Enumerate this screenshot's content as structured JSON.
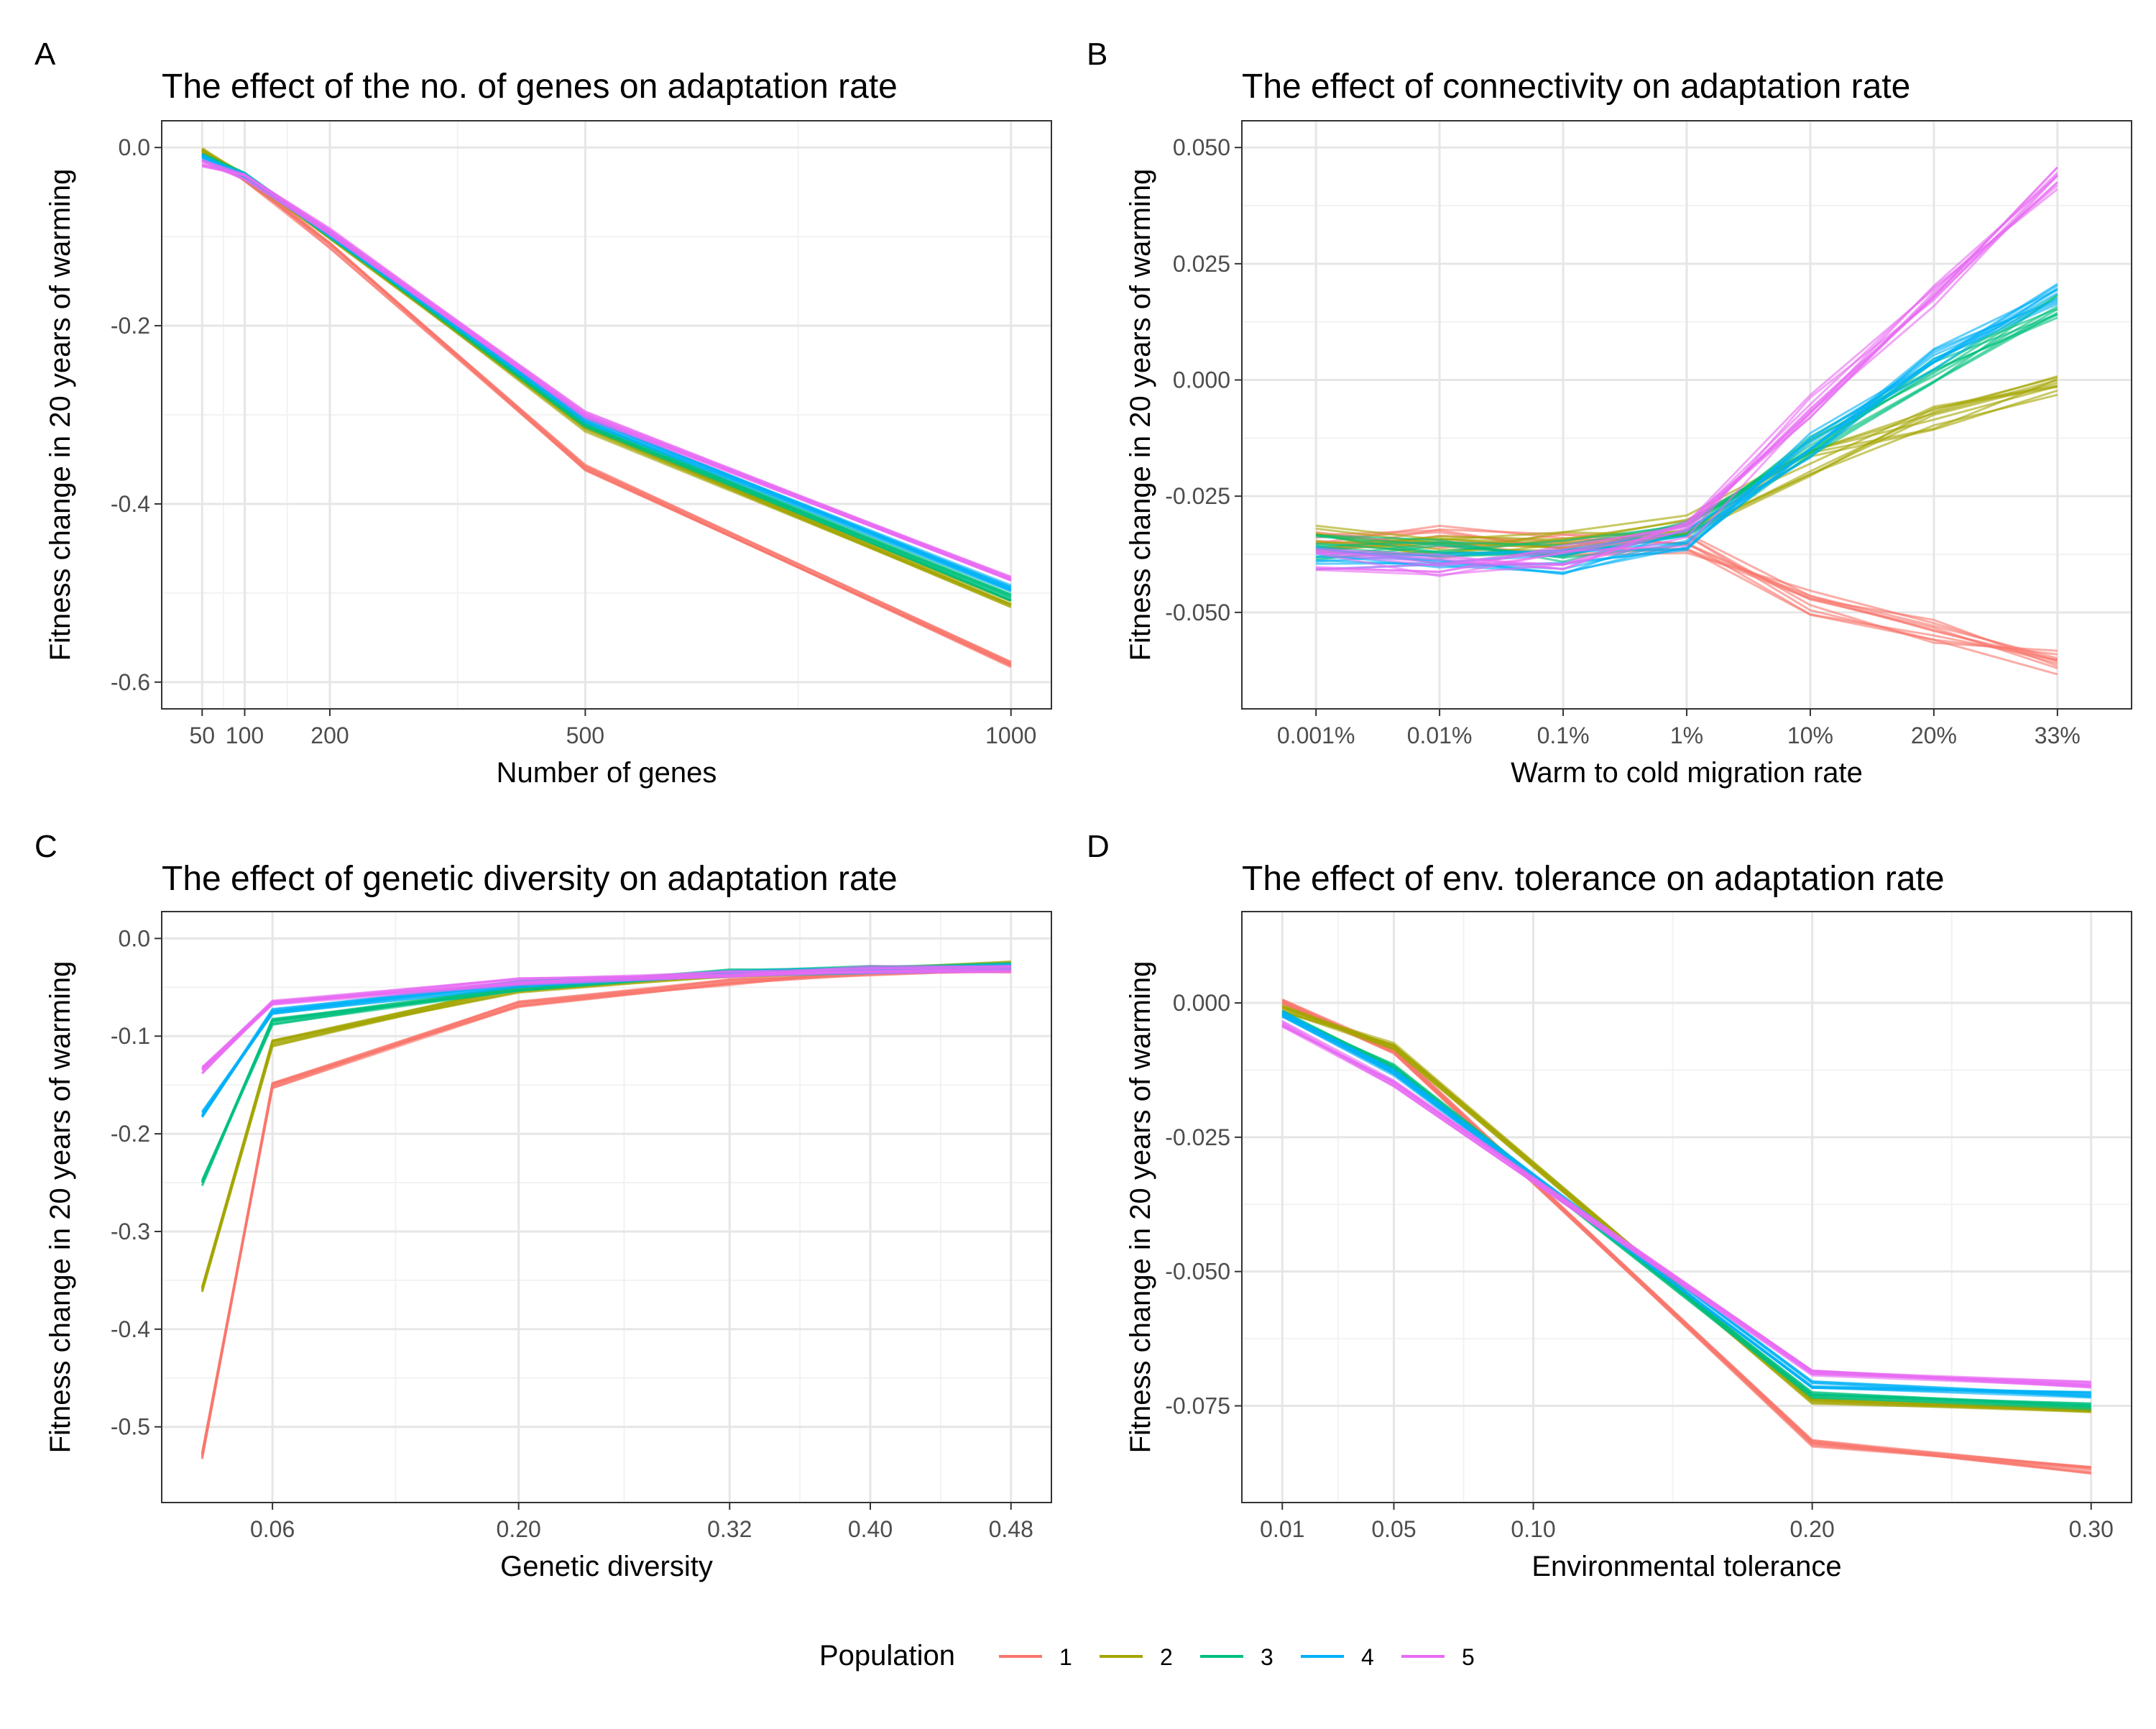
{
  "legend": {
    "title": "Population",
    "entries": [
      "1",
      "2",
      "3",
      "4",
      "5"
    ]
  },
  "colors": {
    "series": [
      "#F8766D",
      "#A3A500",
      "#00BF7D",
      "#00B0F6",
      "#E76BF3"
    ],
    "grid_major": "#E6E6E6",
    "grid_minor": "#F2F2F2",
    "panel_border": "#333333",
    "axis_text": "#4D4D4D"
  },
  "chart_data": [
    {
      "panel_label": "A",
      "type": "line",
      "title": "The effect of the no. of genes on adaptation rate",
      "xlabel": "Number of genes",
      "ylabel": "Fitness change in 20 years of warming",
      "xscale": "linear",
      "xlim": [
        50,
        1000
      ],
      "ylim": [
        -0.6,
        0.0
      ],
      "x": [
        50,
        100,
        200,
        500,
        1000
      ],
      "xticks": [
        50,
        100,
        200,
        500,
        1000
      ],
      "xtick_labels": [
        "50",
        "100",
        "200",
        "500",
        "1000"
      ],
      "yticks": [
        0.0,
        -0.2,
        -0.4,
        -0.6
      ],
      "ytick_labels": [
        "0.0",
        "-0.2",
        "-0.4",
        "-0.6"
      ],
      "replicates_per_population": 10,
      "series": [
        {
          "name": "1",
          "values": [
            -0.005,
            -0.035,
            -0.11,
            -0.36,
            -0.58
          ]
        },
        {
          "name": "2",
          "values": [
            -0.003,
            -0.033,
            -0.1,
            -0.315,
            -0.512
          ]
        },
        {
          "name": "3",
          "values": [
            -0.008,
            -0.032,
            -0.098,
            -0.31,
            -0.505
          ]
        },
        {
          "name": "4",
          "values": [
            -0.012,
            -0.031,
            -0.096,
            -0.305,
            -0.495
          ]
        },
        {
          "name": "5",
          "values": [
            -0.018,
            -0.034,
            -0.094,
            -0.3,
            -0.485
          ]
        }
      ]
    },
    {
      "panel_label": "B",
      "type": "line",
      "title": "The effect of connectivity on adaptation rate",
      "xlabel": "Warm to cold migration rate",
      "ylabel": "Fitness change in 20 years of warming",
      "xscale": "categorical",
      "categories": [
        "0.001%",
        "0.01%",
        "0.1%",
        "1%",
        "10%",
        "20%",
        "33%"
      ],
      "ylim": [
        -0.065,
        0.05
      ],
      "yticks": [
        0.05,
        0.025,
        0.0,
        -0.025,
        -0.05
      ],
      "ytick_labels": [
        "0.050",
        "0.025",
        "0.000",
        "-0.025",
        "-0.050"
      ],
      "replicates_per_population": 10,
      "series": [
        {
          "name": "1",
          "values": [
            -0.035,
            -0.034,
            -0.035,
            -0.035,
            -0.048,
            -0.054,
            -0.061
          ]
        },
        {
          "name": "2",
          "values": [
            -0.034,
            -0.036,
            -0.034,
            -0.031,
            -0.018,
            -0.008,
            -0.001
          ]
        },
        {
          "name": "3",
          "values": [
            -0.036,
            -0.037,
            -0.037,
            -0.033,
            -0.014,
            0.002,
            0.016
          ]
        },
        {
          "name": "4",
          "values": [
            -0.038,
            -0.039,
            -0.039,
            -0.034,
            -0.014,
            0.004,
            0.019
          ]
        },
        {
          "name": "5",
          "values": [
            -0.039,
            -0.04,
            -0.038,
            -0.033,
            -0.006,
            0.018,
            0.043
          ]
        }
      ]
    },
    {
      "panel_label": "C",
      "type": "line",
      "title": "The effect of genetic diversity on adaptation rate",
      "xlabel": "Genetic diversity",
      "ylabel": "Fitness change in 20 years of warming",
      "xscale": "linear",
      "xlim": [
        0.02,
        0.48
      ],
      "ylim": [
        -0.55,
        0.0
      ],
      "x": [
        0.02,
        0.06,
        0.2,
        0.32,
        0.4,
        0.48
      ],
      "xticks": [
        0.06,
        0.2,
        0.32,
        0.4,
        0.48
      ],
      "xtick_labels": [
        "0.06",
        "0.20",
        "0.32",
        "0.40",
        "0.48"
      ],
      "yticks": [
        0.0,
        -0.1,
        -0.2,
        -0.3,
        -0.4,
        -0.5
      ],
      "ytick_labels": [
        "0.0",
        "-0.1",
        "-0.2",
        "-0.3",
        "-0.4",
        "-0.5"
      ],
      "replicates_per_population": 10,
      "series": [
        {
          "name": "1",
          "values": [
            -0.53,
            -0.15,
            -0.068,
            -0.045,
            -0.035,
            -0.033
          ]
        },
        {
          "name": "2",
          "values": [
            -0.36,
            -0.107,
            -0.052,
            -0.036,
            -0.031,
            -0.027
          ]
        },
        {
          "name": "3",
          "values": [
            -0.25,
            -0.085,
            -0.05,
            -0.035,
            -0.031,
            -0.028
          ]
        },
        {
          "name": "4",
          "values": [
            -0.18,
            -0.075,
            -0.047,
            -0.035,
            -0.032,
            -0.029
          ]
        },
        {
          "name": "5",
          "values": [
            -0.135,
            -0.067,
            -0.044,
            -0.036,
            -0.032,
            -0.031
          ]
        }
      ]
    },
    {
      "panel_label": "D",
      "type": "line",
      "title": "The effect of env. tolerance on adaptation rate",
      "xlabel": "Environmental tolerance",
      "ylabel": "Fitness change in 20 years of warming",
      "xscale": "linear",
      "xlim": [
        0.01,
        0.3
      ],
      "ylim": [
        -0.088,
        0.012
      ],
      "x": [
        0.01,
        0.05,
        0.2,
        0.3
      ],
      "xticks": [
        0.01,
        0.05,
        0.1,
        0.2,
        0.3
      ],
      "xtick_labels": [
        "0.01",
        "0.05",
        "0.10",
        "0.20",
        "0.30"
      ],
      "yticks": [
        0.0,
        -0.025,
        -0.05,
        -0.075
      ],
      "ytick_labels": [
        "0.000",
        "-0.025",
        "-0.050",
        "-0.075"
      ],
      "replicates_per_population": 10,
      "series": [
        {
          "name": "1",
          "values": [
            0.0,
            -0.009,
            -0.082,
            -0.087
          ]
        },
        {
          "name": "2",
          "values": [
            -0.001,
            -0.008,
            -0.074,
            -0.076
          ]
        },
        {
          "name": "3",
          "values": [
            -0.002,
            -0.012,
            -0.073,
            -0.075
          ]
        },
        {
          "name": "4",
          "values": [
            -0.002,
            -0.013,
            -0.071,
            -0.073
          ]
        },
        {
          "name": "5",
          "values": [
            -0.004,
            -0.015,
            -0.069,
            -0.071
          ]
        }
      ]
    }
  ]
}
